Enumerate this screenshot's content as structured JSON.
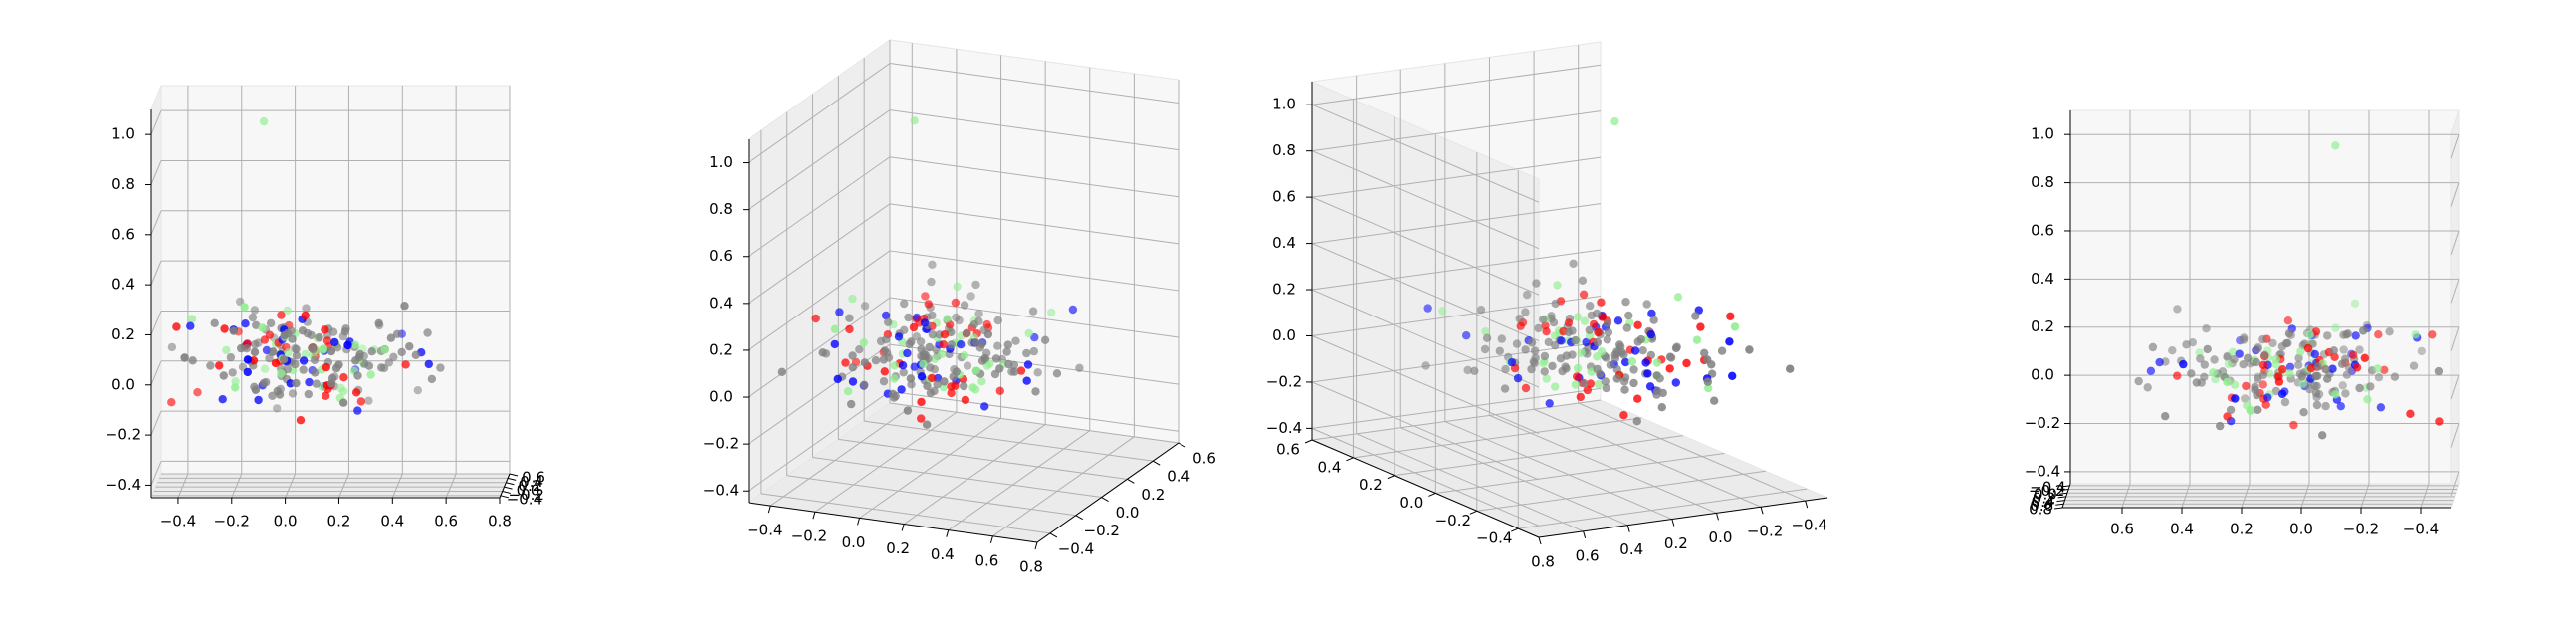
{
  "figure": {
    "background": "#ffffff"
  },
  "chart_data": [
    {
      "type": "scatter",
      "projection": "3d",
      "view": "front (looking along y axis)",
      "grid": true,
      "legend": "none",
      "colors": {
        "gray": "#808080",
        "red": "#ff0000",
        "blue": "#0000ff",
        "green": "#90ee90"
      },
      "xlim": [
        -0.5,
        0.8
      ],
      "ylim": [
        -0.5,
        0.6
      ],
      "zlim": [
        -0.45,
        1.1
      ],
      "xticks": [
        "−0.4",
        "−0.2",
        "0.0",
        "0.2",
        "0.4",
        "0.6",
        "0.8"
      ],
      "yticks": [
        "−0.4",
        "−0.2",
        "0.0",
        "0.2",
        "0.4",
        "0.6"
      ],
      "zticks": [
        "−0.4",
        "−0.2",
        "0.0",
        "0.2",
        "0.4",
        "0.6",
        "0.8",
        "1.0"
      ]
    },
    {
      "type": "scatter",
      "projection": "3d",
      "view": "oblique (azimuth -60)",
      "grid": true,
      "legend": "none",
      "xlim": [
        -0.5,
        0.8
      ],
      "ylim": [
        -0.5,
        0.6
      ],
      "zlim": [
        -0.45,
        1.1
      ],
      "xticks": [
        "−0.4",
        "−0.2",
        "0.0",
        "0.2",
        "0.4",
        "0.6",
        "0.8"
      ],
      "yticks": [
        "−0.4",
        "−0.2",
        "0.0",
        "0.2",
        "0.4",
        "0.6"
      ],
      "zticks": [
        "−0.4",
        "−0.2",
        "0.0",
        "0.2",
        "0.4",
        "0.6",
        "0.8",
        "1.0"
      ]
    },
    {
      "type": "scatter",
      "projection": "3d",
      "view": "oblique (azimuth 30)",
      "grid": true,
      "legend": "none",
      "xlim": [
        -0.5,
        0.8
      ],
      "ylim": [
        -0.5,
        0.6
      ],
      "zlim": [
        -0.45,
        1.1
      ],
      "xticks": [
        "−0.4",
        "−0.2",
        "0.0",
        "0.2",
        "0.4",
        "0.6",
        "0.8"
      ],
      "yticks": [
        "−0.4",
        "−0.2",
        "0.0",
        "0.2",
        "0.4",
        "0.6"
      ],
      "zticks": [
        "−0.4",
        "−0.2",
        "0.0",
        "0.2",
        "0.4",
        "0.6",
        "0.8",
        "1.0"
      ]
    },
    {
      "type": "scatter",
      "projection": "3d",
      "view": "back (looking along -y axis)",
      "grid": true,
      "legend": "none",
      "xlim": [
        -0.5,
        0.8
      ],
      "ylim": [
        -0.5,
        0.8
      ],
      "zlim": [
        -0.45,
        1.1
      ],
      "xticks": [
        "0.6",
        "0.4",
        "0.2",
        "0.0",
        "−0.2",
        "−0.4"
      ],
      "yticks": [
        "−0.4",
        "−0.2",
        "0.0",
        "0.2",
        "0.4",
        "0.6",
        "0.8"
      ],
      "zticks": [
        "−0.4",
        "−0.2",
        "0.0",
        "0.2",
        "0.4",
        "0.6",
        "0.8",
        "1.0"
      ]
    }
  ]
}
